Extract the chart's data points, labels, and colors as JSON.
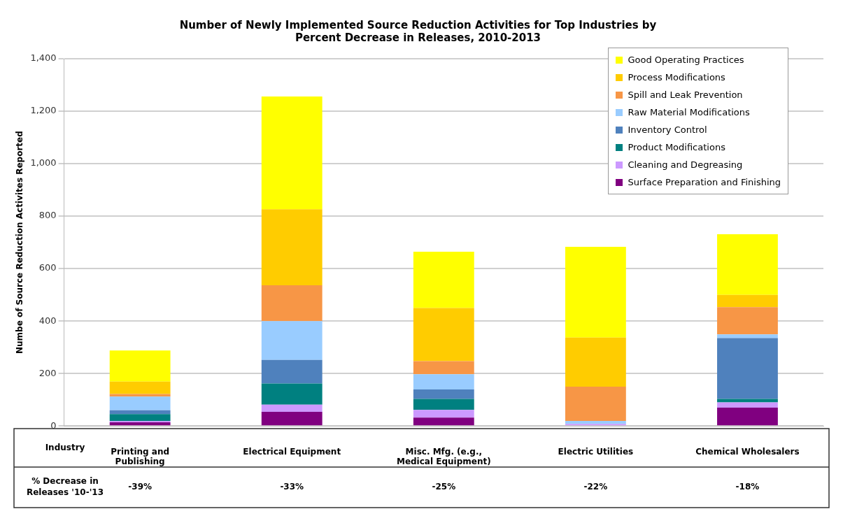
{
  "chart_data": {
    "type": "bar",
    "title": "Number of Newly Implemented Source Reduction Activities for Top Industries by Percent Decrease in Releases, 2010-2013",
    "xlabel": "Industry",
    "ylabel": "Numbe of Source Reduction Activites Reported",
    "categories": [
      "Printing and Publishing",
      "Electrical Equipment",
      "Misc. Mfg. (e.g., Medical Equipment)",
      "Electric Utilities",
      "Chemical Wholesalers"
    ],
    "stacked": true,
    "ylim": [
      0,
      1400
    ],
    "yticks": [
      0,
      {
        "value": 200,
        "label": "200"
      },
      {
        "value": 400,
        "label": "400"
      },
      {
        "value": 600,
        "label": "600"
      },
      {
        "value": 800,
        "label": "800"
      },
      {
        "value": 1000,
        "label": "1,000"
      },
      {
        "value": 1200,
        "label": "1,200"
      },
      {
        "value": 1400,
        "label": "1,400"
      }
    ],
    "grid": "y",
    "legend": "top right",
    "series": [
      {
        "name": "Surface Preparation and Finishing",
        "color": "#800080",
        "values": [
          14,
          54,
          32,
          0,
          70
        ]
      },
      {
        "name": "Cleaning and Degreasing",
        "color": "#cc99ff",
        "values": [
          5,
          27,
          29,
          8,
          20
        ]
      },
      {
        "name": "Product Modifications",
        "color": "#008080",
        "values": [
          26,
          81,
          42,
          0,
          13
        ]
      },
      {
        "name": "Inventory Control",
        "color": "#4f81bd",
        "values": [
          15,
          90,
          36,
          0,
          232
        ]
      },
      {
        "name": "Raw Material Modifications",
        "color": "#99ccff",
        "values": [
          52,
          148,
          58,
          11,
          14
        ]
      },
      {
        "name": "Spill and Leak Prevention",
        "color": "#f79646",
        "values": [
          10,
          136,
          50,
          131,
          104
        ]
      },
      {
        "name": "Process Modifications",
        "color": "#ffcc00",
        "values": [
          47,
          290,
          203,
          187,
          47
        ]
      },
      {
        "name": "Good Operating Practices",
        "color": "#ffff00",
        "values": [
          119,
          430,
          214,
          346,
          231
        ]
      }
    ],
    "annotations": [
      "% Decrease in Releases '10-'13",
      "-39%",
      "-33%",
      "-25%",
      "-22%",
      "-18%"
    ]
  }
}
